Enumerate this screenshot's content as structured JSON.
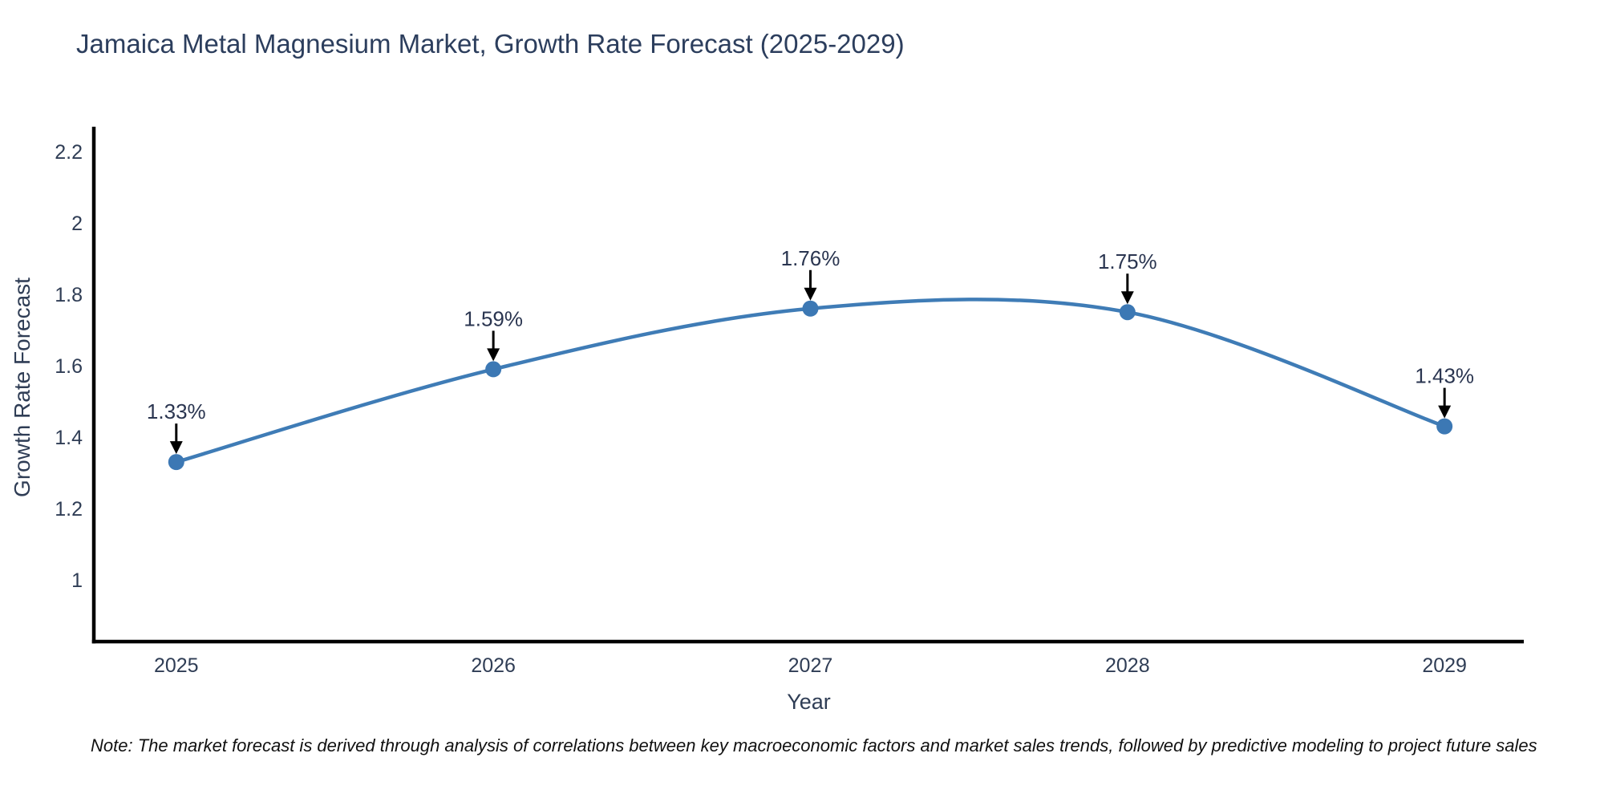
{
  "note": "Note: The market forecast is derived through analysis of correlations between key macroeconomic factors and market sales trends, followed by predictive modeling to project future sales",
  "chart_data": {
    "type": "line",
    "title": "Jamaica Metal Magnesium Market, Growth Rate Forecast (2025-2029)",
    "xlabel": "Year",
    "ylabel": "Growth Rate Forecast",
    "x": [
      2025,
      2026,
      2027,
      2028,
      2029
    ],
    "series": [
      {
        "name": "Growth Rate Forecast",
        "values": [
          1.33,
          1.59,
          1.76,
          1.75,
          1.43
        ]
      }
    ],
    "point_labels": [
      "1.33%",
      "1.59%",
      "1.76%",
      "1.75%",
      "1.43%"
    ],
    "xticks": [
      "2025",
      "2026",
      "2027",
      "2028",
      "2029"
    ],
    "yticks": [
      "1",
      "1.2",
      "1.4",
      "1.6",
      "1.8",
      "2",
      "2.2"
    ],
    "ytick_values": [
      1,
      1.2,
      1.4,
      1.6,
      1.8,
      2,
      2.2
    ],
    "xlim": [
      2024.74,
      2029.25
    ],
    "ylim": [
      0.827,
      2.265
    ],
    "grid": false,
    "legend": "none",
    "curve": "spline",
    "line_color": "#3f7cb6",
    "marker_color": "#3c78b4",
    "axis_color": "#000000",
    "tick_color": "#2f3d55",
    "title_color": "#2c3e5d",
    "annotation_color": "#2a3550",
    "arrow_color": "#000000"
  }
}
